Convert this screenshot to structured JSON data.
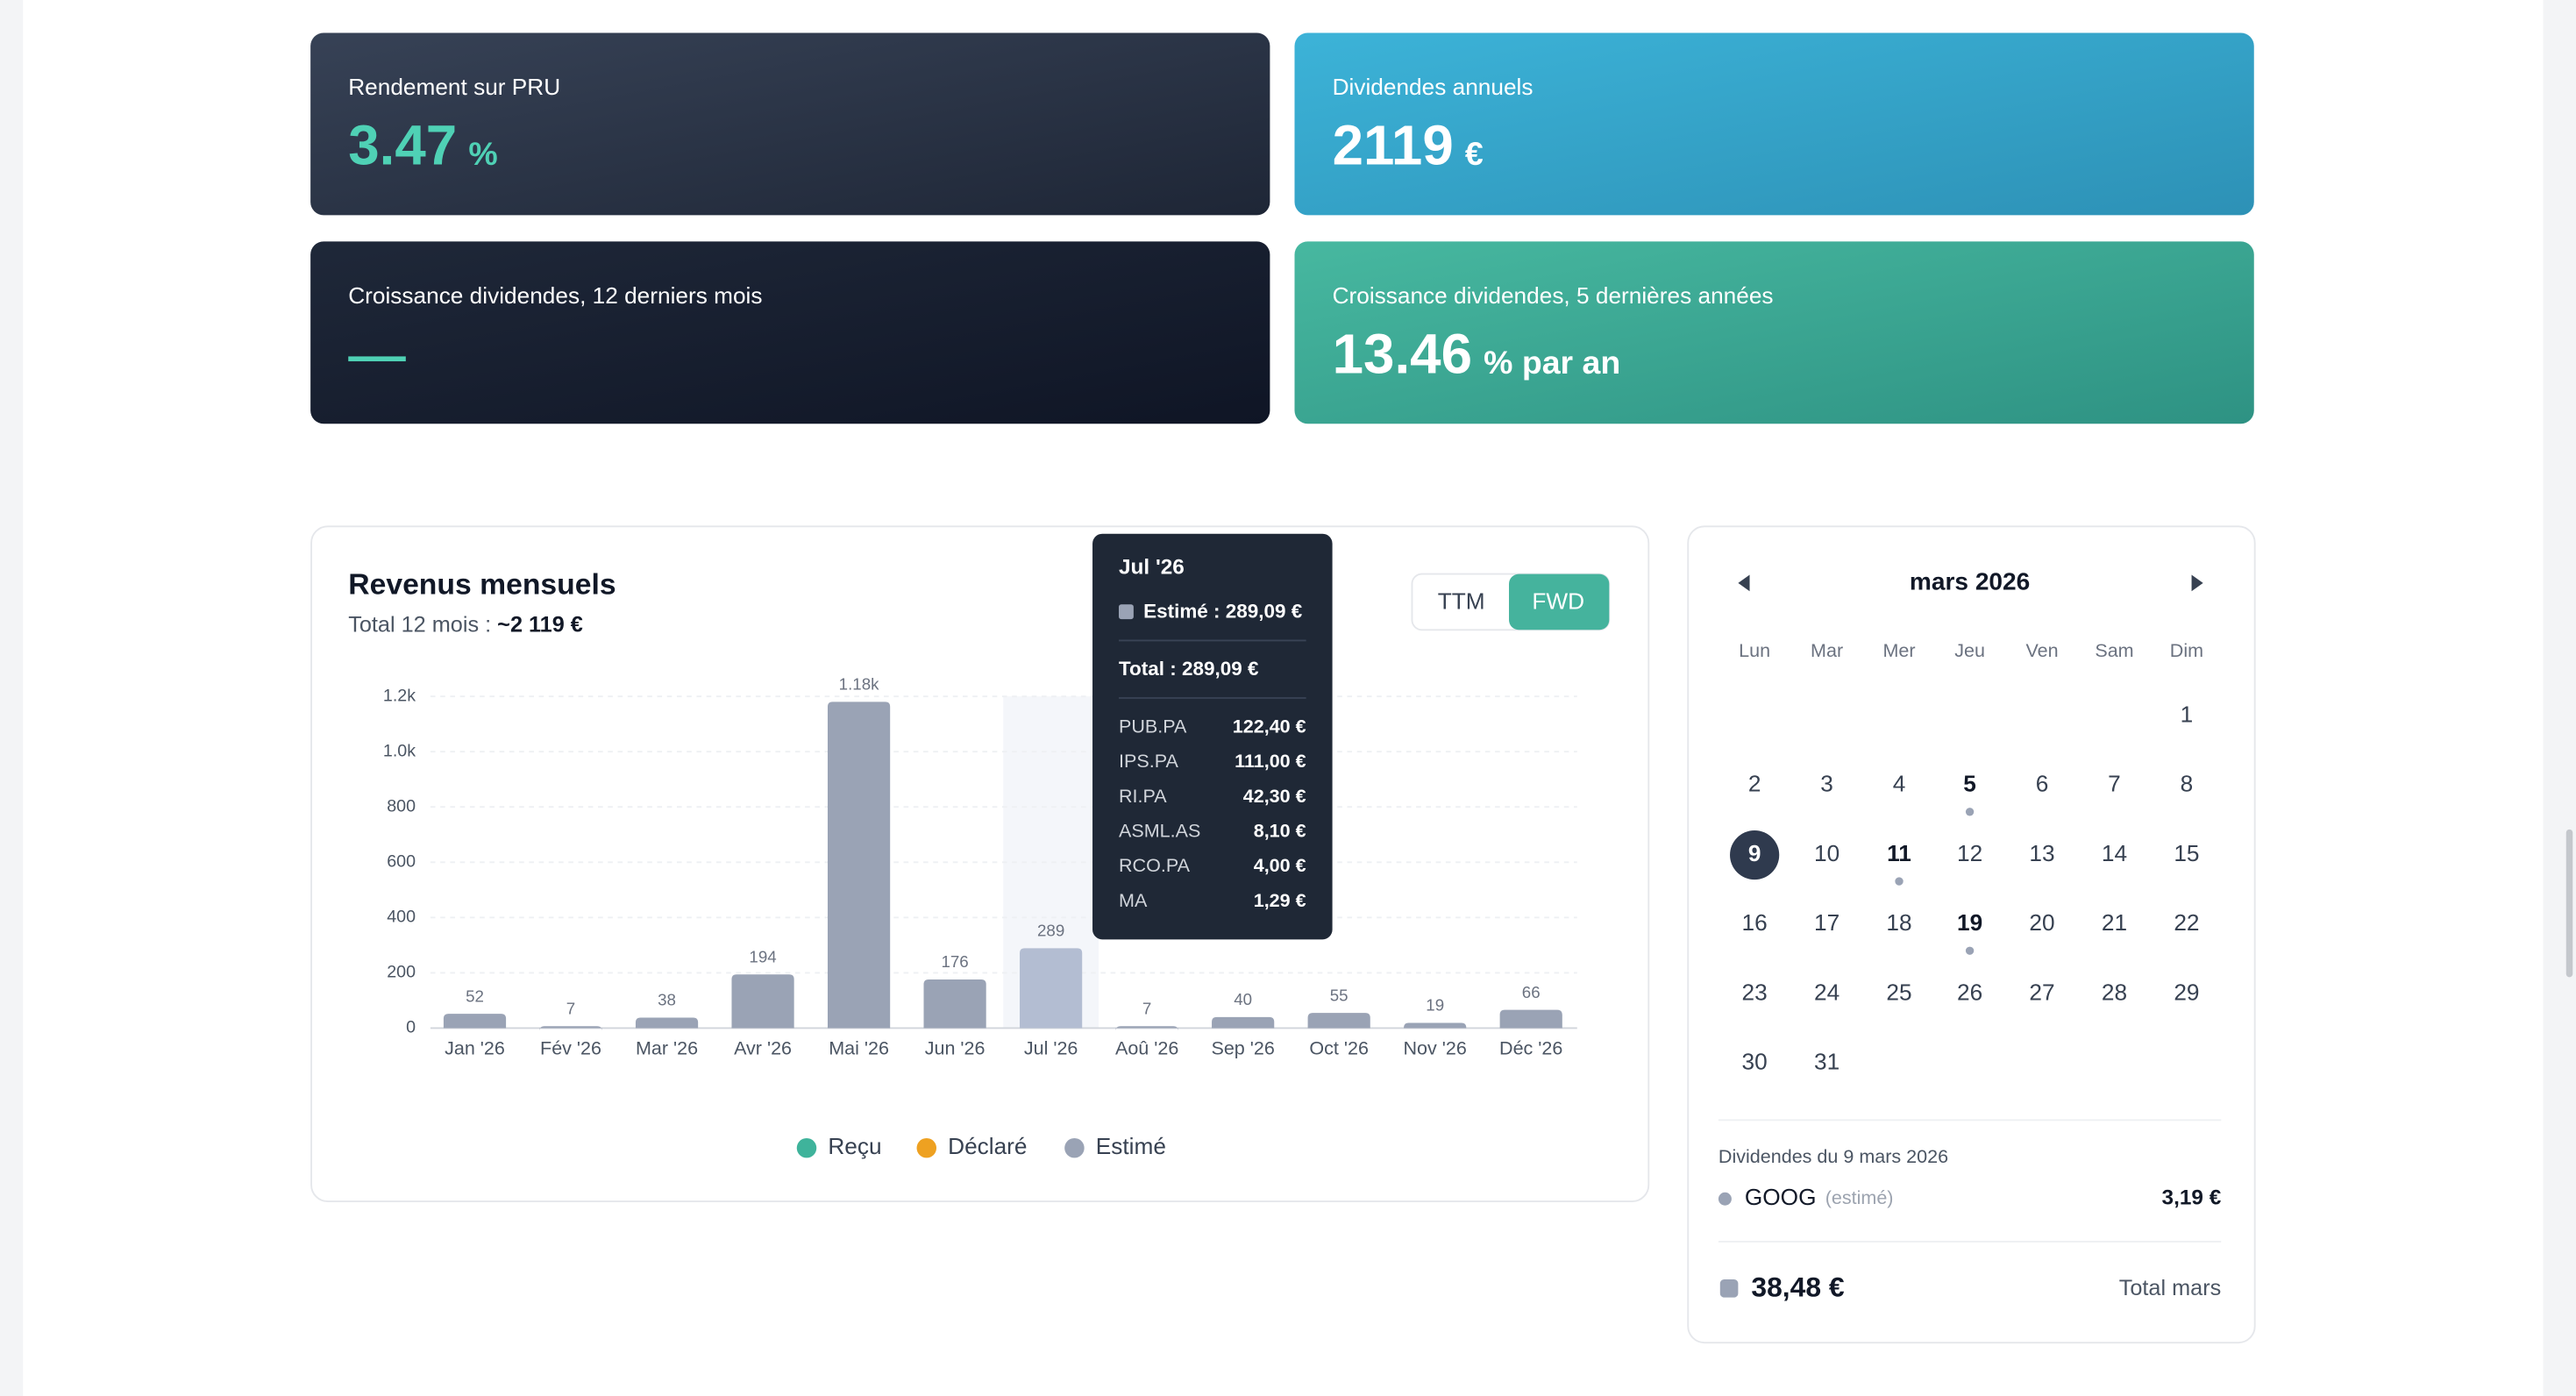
{
  "cards": [
    {
      "label": "Rendement sur PRU",
      "value": "3.47",
      "unit": "%"
    },
    {
      "label": "Dividendes annuels",
      "value": "2119",
      "unit": "€"
    },
    {
      "label": "Croissance dividendes, 12 derniers mois"
    },
    {
      "label": "Croissance dividendes, 5 dernières années",
      "value": "13.46",
      "unit": "% par an"
    }
  ],
  "chart": {
    "type": "bar",
    "title": "Revenus mensuels",
    "total_label": "Total 12 mois : ",
    "total_value": "~2 119 €",
    "toggle": [
      "TTM",
      "FWD"
    ],
    "toggle_active": 1,
    "categories": [
      "Jan '26",
      "Fév '26",
      "Mar '26",
      "Avr '26",
      "Mai '26",
      "Jun '26",
      "Jul '26",
      "Aoû '26",
      "Sep '26",
      "Oct '26",
      "Nov '26",
      "Déc '26"
    ],
    "values": [
      52,
      7,
      38,
      194,
      1180,
      176,
      289,
      7,
      40,
      55,
      19,
      66
    ],
    "value_labels": [
      "52",
      "7",
      "38",
      "194",
      "1.18k",
      "176",
      "289",
      "7",
      "40",
      "55",
      "19",
      "66"
    ],
    "color": "#9aa3b5",
    "active_index": 6,
    "active_color": "#b3bdd2",
    "ylim": [
      0,
      1200
    ],
    "yticks": [
      0,
      200,
      400,
      600,
      800,
      {
        "value": 1000,
        "label": "1.0k"
      },
      {
        "value": 1200,
        "label": "1.2k"
      }
    ],
    "grid": true,
    "legend": [
      {
        "name": "Reçu",
        "color": "#3fb39b"
      },
      {
        "name": "Déclaré",
        "color": "#eea121"
      },
      {
        "name": "Estimé",
        "color": "#9aa3b5"
      }
    ],
    "tooltip": {
      "title": "Jul '26",
      "estimate": "Estimé : 289,09 €",
      "total": "Total : 289,09 €",
      "rows": [
        {
          "ticker": "PUB.PA",
          "amount": "122,40 €"
        },
        {
          "ticker": "IPS.PA",
          "amount": "111,00 €"
        },
        {
          "ticker": "RI.PA",
          "amount": "42,30 €"
        },
        {
          "ticker": "ASML.AS",
          "amount": "8,10 €"
        },
        {
          "ticker": "RCO.PA",
          "amount": "4,00 €"
        },
        {
          "ticker": "MA",
          "amount": "1,29 €"
        }
      ]
    }
  },
  "calendar": {
    "month": "mars 2026",
    "weekdays": [
      "Lun",
      "Mar",
      "Mer",
      "Jeu",
      "Ven",
      "Sam",
      "Dim"
    ],
    "rows": [
      [
        null,
        null,
        null,
        null,
        null,
        null,
        1
      ],
      [
        2,
        3,
        4,
        5,
        6,
        7,
        8
      ],
      [
        9,
        10,
        11,
        12,
        13,
        14,
        15
      ],
      [
        16,
        17,
        18,
        19,
        20,
        21,
        22
      ],
      [
        23,
        24,
        25,
        26,
        27,
        28,
        29
      ],
      [
        30,
        31,
        null,
        null,
        null,
        null,
        null
      ]
    ],
    "marked": [
      5,
      11,
      19
    ],
    "selected": 9,
    "detail_title": "Dividendes du 9 mars 2026",
    "detail_rows": [
      {
        "ticker": "GOOG",
        "status": "(estimé)",
        "amount": "3,19 €"
      }
    ],
    "total_value": "38,48 €",
    "total_label": "Total mars"
  }
}
